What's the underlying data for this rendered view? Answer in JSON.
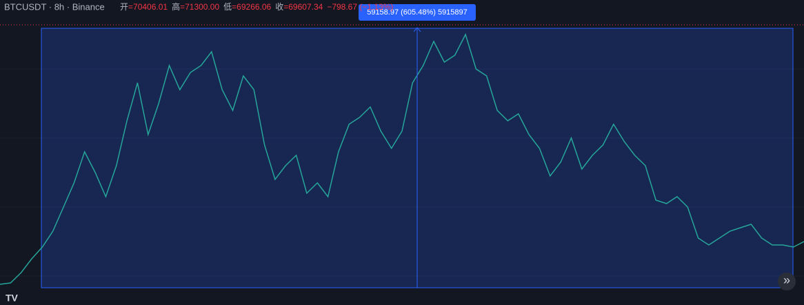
{
  "header": {
    "symbol": "BTCUSDT · 8h · Binance",
    "ohlc": [
      {
        "label": "开",
        "value": "=70406.01"
      },
      {
        "label": "高",
        "value": "=71300.00"
      },
      {
        "label": "低",
        "value": "=69266.06"
      },
      {
        "label": "收",
        "value": "=69607.34"
      }
    ],
    "change": "−798.67 (−1.13%)"
  },
  "measure_label": "59158.97 (605.48%) 5915897",
  "logo": "TV",
  "scroll_button": "»",
  "chart_data": {
    "type": "line",
    "color": "#26a69a",
    "ylim": [
      9770,
      68990
    ],
    "values": [
      10560,
      10870,
      13240,
      16390,
      19060,
      22690,
      28200,
      33710,
      40800,
      36070,
      30560,
      37650,
      47890,
      56550,
      44740,
      51820,
      60490,
      54970,
      58910,
      60490,
      63640,
      54970,
      50250,
      58120,
      54970,
      42370,
      34500,
      37650,
      40010,
      31350,
      33710,
      30560,
      40800,
      47100,
      48670,
      51040,
      45520,
      41590,
      45520,
      56550,
      60490,
      66000,
      61270,
      62850,
      67570,
      59700,
      58120,
      50250,
      47890,
      49460,
      44740,
      41590,
      35290,
      38440,
      43950,
      36860,
      40010,
      42370,
      47100,
      43160,
      40010,
      37650,
      29770,
      28990,
      30560,
      28200,
      21110,
      19540,
      21110,
      22690,
      23470,
      24260,
      21110,
      19540,
      19540,
      19060,
      20320
    ]
  }
}
